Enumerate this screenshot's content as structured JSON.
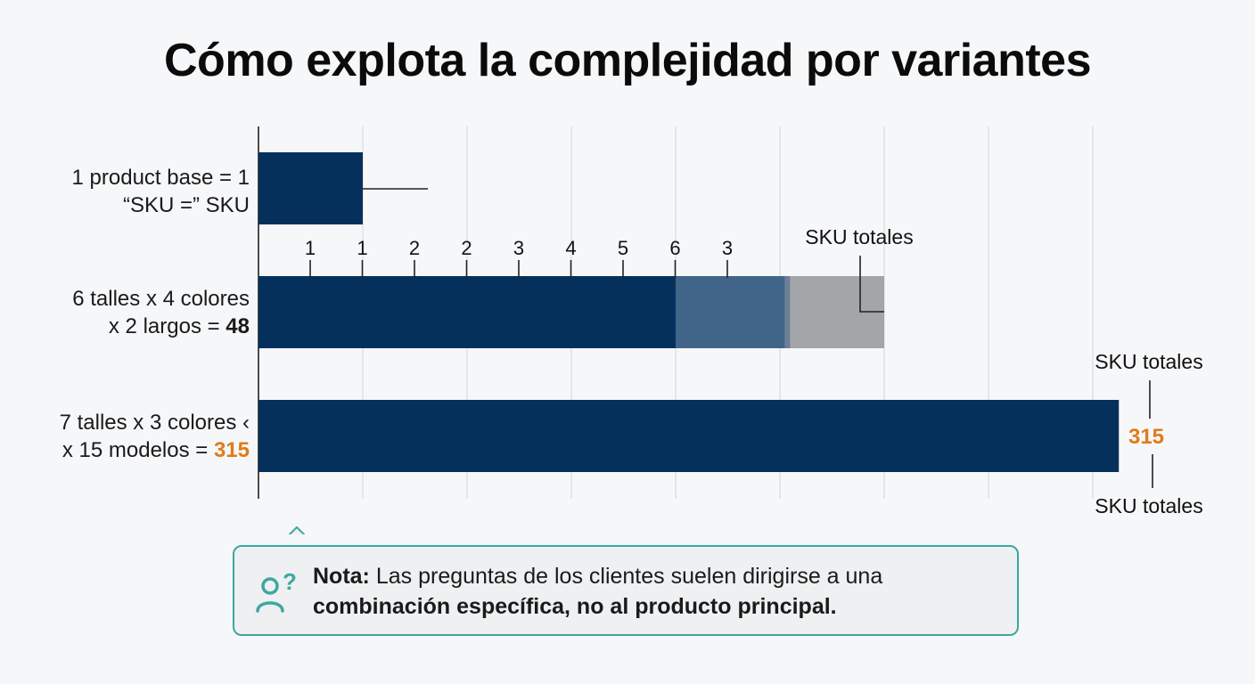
{
  "chart_data": {
    "type": "bar",
    "orientation": "horizontal",
    "title": "Cómo explota la complejidad por variantes",
    "categories": [
      {
        "line1": "1 product base = 1",
        "line2": "“SKU =” SKU",
        "value": 1,
        "value_label": ""
      },
      {
        "line1": "6 talles x 4 colores",
        "line2_prefix": "x 2 largos = ",
        "line2_value": "48",
        "value": 48,
        "value_label": "48",
        "segments": [
          {
            "value": 4.0,
            "color": "#06305c"
          },
          {
            "value": 1.05,
            "color": "#416588"
          },
          {
            "value": 0.05,
            "color": "#6d7f93"
          },
          {
            "value": 0.9,
            "color": "#a3a5a8"
          }
        ],
        "scale_ticks": [
          "1",
          "1",
          "2",
          "2",
          "3",
          "4",
          "5",
          "6",
          "3"
        ],
        "annotation": "SKU totales"
      },
      {
        "line1": "7 talles x 3 colores ‹",
        "line2_prefix": "x 15 modelos = ",
        "line2_value": "315",
        "value": 315,
        "value_label": "315",
        "annotation_top": "SKU totales",
        "annotation_bottom": "SKU totales"
      }
    ],
    "grid": true,
    "legend": "none",
    "colors": {
      "bar": "#06305c",
      "highlight": "#e07b1a"
    }
  },
  "note": {
    "label": "Nota:",
    "text": " Las preguntas de los clientes suelen dirigirse a una",
    "bold_text": "combinación específica, no al producto principal.",
    "icon": "user-question-icon",
    "border_color": "#3ea7a0"
  }
}
